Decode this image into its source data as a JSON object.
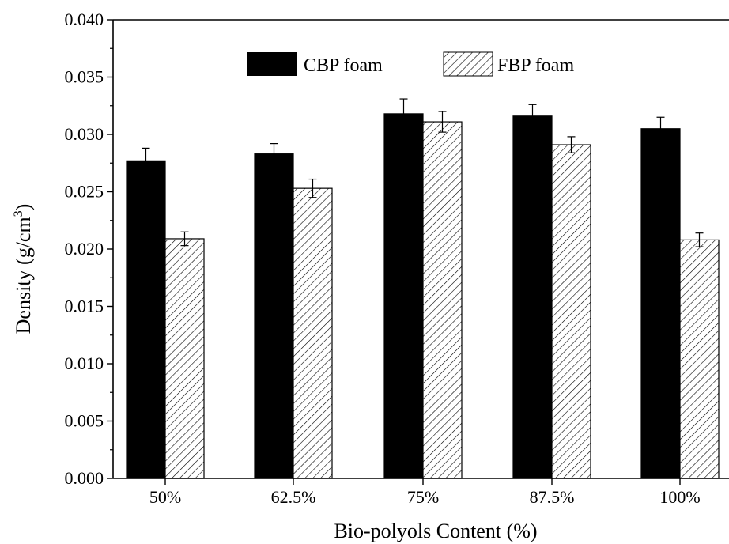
{
  "chart_data": {
    "type": "bar",
    "title": "",
    "xlabel": "Bio-polyols Content (%)",
    "ylabel": "Density (g/cm",
    "ylabel_superscript": "3",
    "ylabel_close": ")",
    "categories": [
      "50%",
      "62.5%",
      "75%",
      "87.5%",
      "100%"
    ],
    "ylim": [
      0.0,
      0.04
    ],
    "yticks": [
      "0.000",
      "0.005",
      "0.010",
      "0.015",
      "0.020",
      "0.025",
      "0.030",
      "0.035",
      "0.040"
    ],
    "grid": false,
    "legend_position": "top-center",
    "series": [
      {
        "name": "CBP foam",
        "fill": "solid-black",
        "color": "#000000",
        "values": [
          0.0277,
          0.0283,
          0.0318,
          0.0316,
          0.0305
        ],
        "errors": [
          0.0011,
          0.0009,
          0.0013,
          0.001,
          0.001
        ]
      },
      {
        "name": "FBP foam",
        "fill": "diagonal-hatch",
        "color": "#000000",
        "values": [
          0.0209,
          0.0253,
          0.0311,
          0.0291,
          0.0208
        ],
        "errors": [
          0.0006,
          0.0008,
          0.0009,
          0.0007,
          0.0006
        ]
      }
    ]
  }
}
